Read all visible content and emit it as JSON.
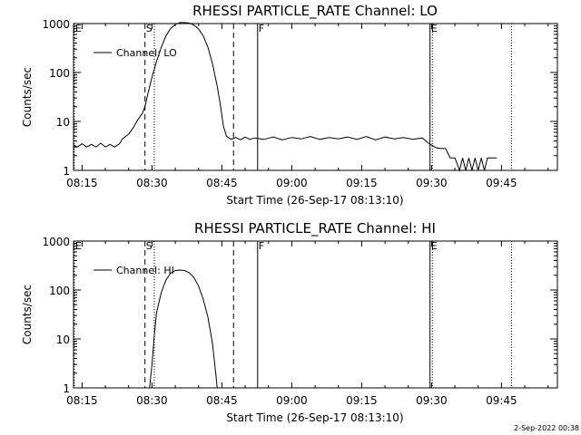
{
  "footer": {
    "date_stamp": "2-Sep-2022 00:38"
  },
  "chart_data": [
    {
      "type": "line",
      "title": "RHESSI PARTICLE_RATE Channel: LO",
      "xlabel": "Start Time (26-Sep-17 08:13:10)",
      "ylabel": "Counts/sec",
      "yscale": "log",
      "ylim": [
        1,
        1000
      ],
      "xlim": [
        "08:13:10",
        "09:57:00"
      ],
      "x_ticks": [
        "08:15",
        "08:30",
        "08:45",
        "09:00",
        "09:15",
        "09:30",
        "09:45"
      ],
      "y_ticks": [
        "1",
        "10",
        "100",
        "1000"
      ],
      "legend": {
        "entries": [
          "Channel: LO"
        ],
        "placement": "top-left"
      },
      "markers": [
        {
          "time": "08:28:30",
          "style": "dashed",
          "label": "S"
        },
        {
          "time": "08:30:30",
          "style": "dotted",
          "label": ""
        },
        {
          "time": "08:47:30",
          "style": "dashed",
          "label": ""
        },
        {
          "time": "08:52:40",
          "style": "solid",
          "label": "F"
        },
        {
          "time": "09:29:40",
          "style": "solid",
          "label": "E"
        },
        {
          "time": "09:30:10",
          "style": "dotted",
          "label": ""
        },
        {
          "time": "09:47:10",
          "style": "dotted",
          "label": ""
        },
        {
          "time": "08:13:20",
          "style": "dotted",
          "label": "E"
        }
      ],
      "series": [
        {
          "name": "Channel: LO",
          "points": [
            [
              "08:13:10",
              3.3
            ],
            [
              "08:14:00",
              3.0
            ],
            [
              "08:15:00",
              3.5
            ],
            [
              "08:16:00",
              3.0
            ],
            [
              "08:17:00",
              3.4
            ],
            [
              "08:18:00",
              3.0
            ],
            [
              "08:19:00",
              3.6
            ],
            [
              "08:20:00",
              3.0
            ],
            [
              "08:21:00",
              3.4
            ],
            [
              "08:22:00",
              3.0
            ],
            [
              "08:23:00",
              3.5
            ],
            [
              "08:23:40",
              4.4
            ],
            [
              "08:25:00",
              5.5
            ],
            [
              "08:26:00",
              7.5
            ],
            [
              "08:27:00",
              11
            ],
            [
              "08:28:00",
              15
            ],
            [
              "08:28:30",
              20
            ],
            [
              "08:29:00",
              33
            ],
            [
              "08:30:00",
              80
            ],
            [
              "08:31:00",
              170
            ],
            [
              "08:32:00",
              330
            ],
            [
              "08:33:00",
              560
            ],
            [
              "08:34:00",
              790
            ],
            [
              "08:35:00",
              960
            ],
            [
              "08:36:00",
              1050
            ],
            [
              "08:37:00",
              1050
            ],
            [
              "08:38:00",
              1020
            ],
            [
              "08:39:00",
              930
            ],
            [
              "08:40:00",
              780
            ],
            [
              "08:41:00",
              560
            ],
            [
              "08:42:00",
              330
            ],
            [
              "08:43:00",
              150
            ],
            [
              "08:44:00",
              52
            ],
            [
              "08:44:40",
              22
            ],
            [
              "08:45:20",
              8
            ],
            [
              "08:46:00",
              5
            ],
            [
              "08:47:00",
              4.3
            ],
            [
              "08:48:00",
              4.7
            ],
            [
              "08:49:00",
              4.2
            ],
            [
              "08:50:00",
              4.8
            ],
            [
              "08:51:00",
              4.3
            ],
            [
              "08:52:00",
              4.6
            ],
            [
              "08:54:00",
              4.3
            ],
            [
              "08:56:00",
              4.8
            ],
            [
              "08:58:00",
              4.2
            ],
            [
              "09:00:00",
              4.7
            ],
            [
              "09:02:00",
              4.4
            ],
            [
              "09:04:00",
              4.9
            ],
            [
              "09:06:00",
              4.3
            ],
            [
              "09:08:00",
              4.7
            ],
            [
              "09:10:00",
              4.4
            ],
            [
              "09:12:00",
              4.8
            ],
            [
              "09:14:00",
              4.3
            ],
            [
              "09:16:00",
              4.9
            ],
            [
              "09:18:00",
              4.2
            ],
            [
              "09:20:00",
              4.8
            ],
            [
              "09:22:00",
              4.4
            ],
            [
              "09:24:00",
              4.7
            ],
            [
              "09:26:00",
              4.3
            ],
            [
              "09:28:00",
              4.6
            ],
            [
              "09:29:30",
              3.5
            ],
            [
              "09:31:00",
              2.9
            ],
            [
              "09:32:00",
              2.8
            ],
            [
              "09:33:00",
              2.8
            ],
            [
              "09:34:00",
              1.8
            ],
            [
              "09:35:00",
              1.8
            ],
            [
              "09:36:00",
              1.0
            ],
            [
              "09:36:40",
              1.8
            ],
            [
              "09:37:20",
              1.0
            ],
            [
              "09:38:00",
              1.8
            ],
            [
              "09:38:40",
              1.0
            ],
            [
              "09:39:20",
              1.8
            ],
            [
              "09:40:00",
              1.0
            ],
            [
              "09:40:40",
              1.8
            ],
            [
              "09:41:20",
              1.0
            ],
            [
              "09:42:00",
              1.8
            ],
            [
              "09:44:00",
              1.8
            ]
          ]
        }
      ]
    },
    {
      "type": "line",
      "title": "RHESSI PARTICLE_RATE Channel: HI",
      "xlabel": "Start Time (26-Sep-17 08:13:10)",
      "ylabel": "Counts/sec",
      "yscale": "log",
      "ylim": [
        1,
        1000
      ],
      "xlim": [
        "08:13:10",
        "09:57:00"
      ],
      "x_ticks": [
        "08:15",
        "08:30",
        "08:45",
        "09:00",
        "09:15",
        "09:30",
        "09:45"
      ],
      "y_ticks": [
        "1",
        "10",
        "100",
        "1000"
      ],
      "legend": {
        "entries": [
          "Channel: HI"
        ],
        "placement": "top-left"
      },
      "markers": [
        {
          "time": "08:28:30",
          "style": "dashed",
          "label": "S"
        },
        {
          "time": "08:30:30",
          "style": "dotted",
          "label": ""
        },
        {
          "time": "08:47:30",
          "style": "dashed",
          "label": ""
        },
        {
          "time": "08:52:40",
          "style": "solid",
          "label": "F"
        },
        {
          "time": "09:29:40",
          "style": "solid",
          "label": "E"
        },
        {
          "time": "09:30:10",
          "style": "dotted",
          "label": ""
        },
        {
          "time": "09:47:10",
          "style": "dotted",
          "label": ""
        },
        {
          "time": "08:13:20",
          "style": "dotted",
          "label": "E"
        }
      ],
      "series": [
        {
          "name": "Channel: HI",
          "points": [
            [
              "08:29:30",
              1.0
            ],
            [
              "08:30:00",
              3
            ],
            [
              "08:30:30",
              12
            ],
            [
              "08:31:00",
              35
            ],
            [
              "08:32:00",
              90
            ],
            [
              "08:33:00",
              160
            ],
            [
              "08:34:00",
              220
            ],
            [
              "08:35:00",
              250
            ],
            [
              "08:36:00",
              255
            ],
            [
              "08:37:00",
              250
            ],
            [
              "08:38:00",
              225
            ],
            [
              "08:39:00",
              180
            ],
            [
              "08:40:00",
              120
            ],
            [
              "08:41:00",
              65
            ],
            [
              "08:42:00",
              28
            ],
            [
              "08:43:00",
              8
            ],
            [
              "08:43:40",
              2
            ],
            [
              "08:44:00",
              1.0
            ]
          ]
        }
      ]
    }
  ]
}
